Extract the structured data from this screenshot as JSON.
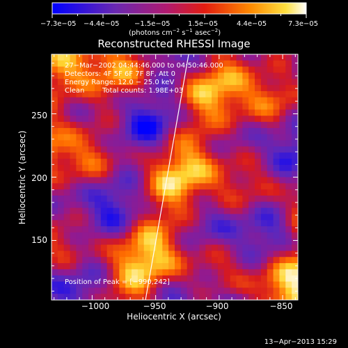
{
  "chart_data": {
    "type": "heatmap",
    "title": "Reconstructed RHESSI Image",
    "xlabel": "Heliocentric X (arcsec)",
    "ylabel": "Heliocentric Y (arcsec)",
    "xlim": [
      -1032,
      -838
    ],
    "ylim": [
      103,
      297
    ],
    "xticks": [
      -1000,
      -950,
      -900,
      -850
    ],
    "xtick_labels": [
      "−1000",
      "−950",
      "−900",
      "−850"
    ],
    "yticks": [
      150,
      200,
      250
    ],
    "ytick_labels": [
      "150",
      "200",
      "250"
    ],
    "colorbar": {
      "ticks": [
        "−7.3e−05",
        "−4.4e−05",
        "−1.5e−05",
        "1.5e−05",
        "4.4e−05",
        "7.3e−05"
      ],
      "range": [
        -7.3e-05,
        7.3e-05
      ],
      "unit_main": "(photons cm",
      "unit_sup1": "−2",
      "unit_mid": " s",
      "unit_sup2": "−1",
      "unit_mid2": " asec",
      "unit_sup3": "−2",
      "unit_end": ")"
    },
    "annotations": {
      "time_range": "27−Mar−2002 04:44:46.000 to 04:50:46.000",
      "detectors": "Detectors: 4F 5F 6F 7F 8F, Att 0",
      "energy_range": "Energy Range: 12.0 − 25.0 keV",
      "method": "Clean",
      "total_counts": "Total counts: 1.98E+03",
      "peak": "Position of Peak = [−990,242]"
    },
    "limb_line": {
      "x": [
        -958,
        -924
      ],
      "y": [
        103,
        297
      ]
    },
    "colors": {
      "cmap": [
        "#0000ff",
        "#5030c0",
        "#9a1a90",
        "#e01818",
        "#ff8000",
        "#ffe040",
        "#ffffff"
      ]
    }
  },
  "footer": {
    "timestamp": "13−Apr−2013 15:29"
  }
}
